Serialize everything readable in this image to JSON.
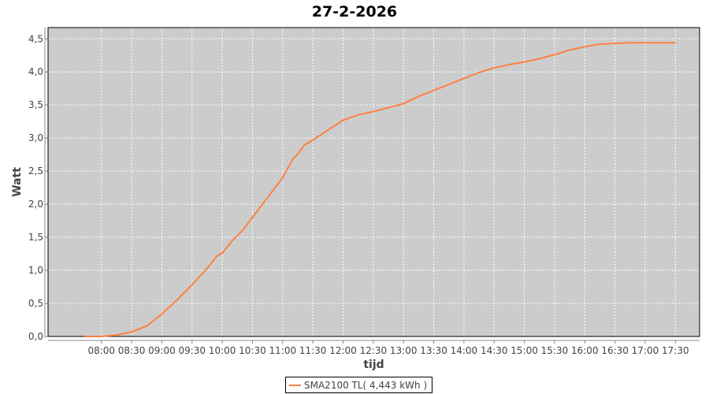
{
  "chart_data": {
    "type": "line",
    "title": "27-2-2026",
    "xlabel": "tijd",
    "ylabel": "Watt",
    "xlim": [
      "07:07",
      "17:54"
    ],
    "ylim": [
      0,
      4.67
    ],
    "grid": true,
    "x_ticks": [
      "08:00",
      "08:30",
      "09:00",
      "09:30",
      "10:00",
      "10:30",
      "11:00",
      "11:30",
      "12:00",
      "12:30",
      "13:00",
      "13:30",
      "14:00",
      "14:30",
      "15:00",
      "15:30",
      "16:00",
      "16:30",
      "17:00",
      "17:30"
    ],
    "y_ticks": [
      "0,0",
      "0,5",
      "1,0",
      "1,5",
      "2,0",
      "2,5",
      "3,0",
      "3,5",
      "4,0",
      "4,5"
    ],
    "legend_position": "bottom",
    "series": [
      {
        "name": "SMA2100 TL( 4,443 kWh )",
        "color": "#ff8040",
        "x": [
          "07:44",
          "08:00",
          "08:15",
          "08:30",
          "08:45",
          "09:00",
          "09:15",
          "09:30",
          "09:45",
          "09:55",
          "10:00",
          "10:10",
          "10:20",
          "10:30",
          "10:45",
          "11:00",
          "11:10",
          "11:15",
          "11:22",
          "11:30",
          "11:45",
          "12:00",
          "12:15",
          "12:30",
          "12:45",
          "13:00",
          "13:15",
          "13:30",
          "13:45",
          "14:00",
          "14:15",
          "14:30",
          "14:45",
          "15:00",
          "15:15",
          "15:30",
          "15:45",
          "16:00",
          "16:15",
          "16:30",
          "16:45",
          "17:00",
          "17:30"
        ],
        "y": [
          0.0,
          0.0,
          0.02,
          0.07,
          0.16,
          0.34,
          0.55,
          0.78,
          1.03,
          1.22,
          1.26,
          1.45,
          1.6,
          1.8,
          2.1,
          2.4,
          2.68,
          2.76,
          2.9,
          2.97,
          3.12,
          3.27,
          3.35,
          3.4,
          3.46,
          3.52,
          3.63,
          3.72,
          3.81,
          3.9,
          3.99,
          4.06,
          4.11,
          4.15,
          4.2,
          4.26,
          4.33,
          4.38,
          4.42,
          4.43,
          4.44,
          4.44,
          4.44
        ]
      }
    ]
  }
}
